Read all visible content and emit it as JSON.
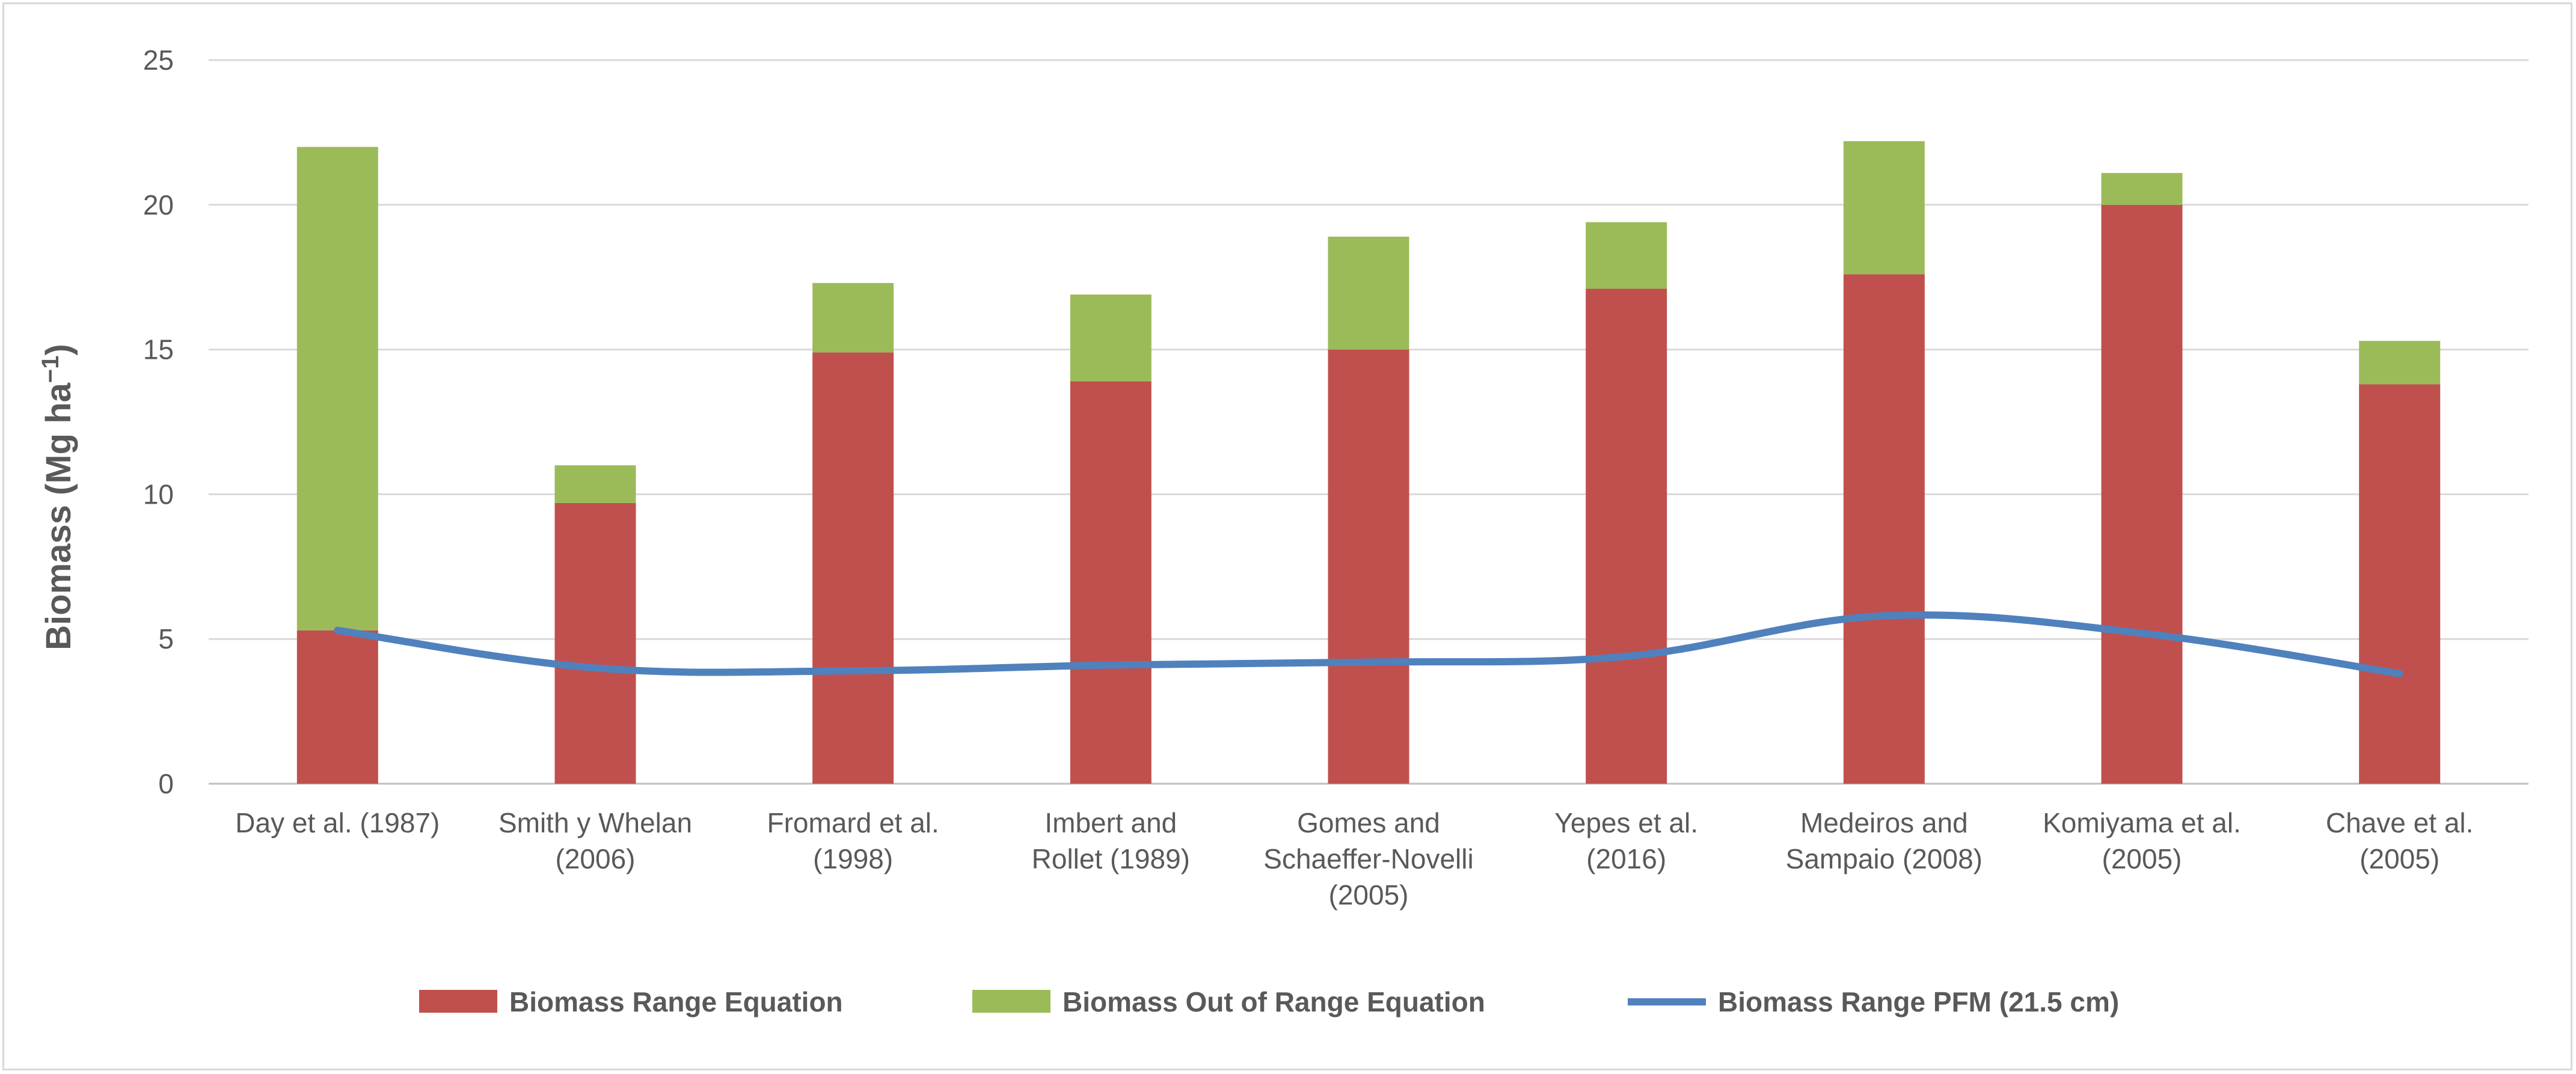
{
  "chart_data": {
    "type": "bar",
    "stacked": true,
    "title": "",
    "xlabel": "",
    "ylabel": "Biomass (Mg ha",
    "ylabel_superscript": "−1",
    "ylabel_close": ")",
    "ylim": [
      0,
      25
    ],
    "yticks": [
      0,
      5,
      10,
      15,
      20,
      25
    ],
    "grid": true,
    "legend_position": "bottom",
    "categories": [
      [
        "Day et al. (1987)"
      ],
      [
        "Smith y Whelan",
        "(2006)"
      ],
      [
        "Fromard et al.",
        "(1998)"
      ],
      [
        "Imbert and",
        "Rollet (1989)"
      ],
      [
        "Gomes and",
        "Schaeffer-Novelli",
        "(2005)"
      ],
      [
        "Yepes et al.",
        "(2016)"
      ],
      [
        "Medeiros and",
        "Sampaio (2008)"
      ],
      [
        "Komiyama et al.",
        "(2005)"
      ],
      [
        "Chave et al.",
        "(2005)"
      ]
    ],
    "series": [
      {
        "name": "Biomass Range Equation",
        "type": "bar",
        "color": "#c0504d",
        "values": [
          5.3,
          9.7,
          14.9,
          13.9,
          15.0,
          17.1,
          17.6,
          20.0,
          13.8
        ]
      },
      {
        "name": "Biomass Out of Range Equation",
        "type": "bar",
        "color": "#9bbb59",
        "values": [
          16.7,
          1.3,
          2.4,
          3.0,
          3.9,
          2.3,
          4.6,
          1.1,
          1.5
        ]
      },
      {
        "name": "Biomass Range PFM (21.5 cm)",
        "type": "line",
        "color": "#4f81bd",
        "values": [
          5.3,
          4.0,
          3.9,
          4.1,
          4.2,
          4.4,
          5.8,
          5.2,
          3.8
        ]
      }
    ]
  }
}
